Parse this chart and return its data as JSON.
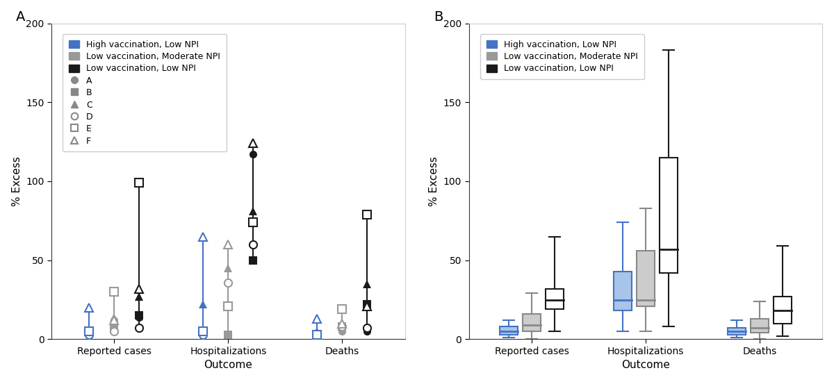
{
  "panel_A": {
    "label": "A",
    "scenarios": [
      {
        "name": "High vaccination, Low NPI",
        "color": "#4472C4",
        "models": {
          "Reported cases": {
            "A": 4,
            "B": 5,
            "C": 5,
            "D": 3,
            "E": 5,
            "F": 20
          },
          "Hospitalizations": {
            "A": 5,
            "B": 5,
            "C": 22,
            "D": 3,
            "E": 5,
            "F": 65
          },
          "Deaths": {
            "A": 2,
            "B": 2,
            "C": 5,
            "D": 0,
            "E": 3,
            "F": 13
          }
        }
      },
      {
        "name": "Low vaccination, Moderate NPI",
        "color": "#999999",
        "models": {
          "Reported cases": {
            "A": 12,
            "B": 7,
            "C": 14,
            "D": 5,
            "E": 30,
            "F": 12
          },
          "Hospitalizations": {
            "A": 3,
            "B": 3,
            "C": 45,
            "D": 36,
            "E": 21,
            "F": 60
          },
          "Deaths": {
            "A": 5,
            "B": 8,
            "C": 10,
            "D": 8,
            "E": 19,
            "F": 10
          }
        }
      },
      {
        "name": "Low vaccination, Low NPI",
        "color": "#1a1a1a",
        "models": {
          "Reported cases": {
            "A": 14,
            "B": 15,
            "C": 27,
            "D": 7,
            "E": 99,
            "F": 32
          },
          "Hospitalizations": {
            "A": 117,
            "B": 50,
            "C": 81,
            "D": 60,
            "E": 74,
            "F": 124
          },
          "Deaths": {
            "A": 5,
            "B": 22,
            "C": 35,
            "D": 7,
            "E": 79,
            "F": 21
          }
        }
      }
    ],
    "outcomes": [
      "Reported cases",
      "Hospitalizations",
      "Deaths"
    ],
    "model_markers": {
      "A": "o",
      "B": "s",
      "C": "^",
      "D": "o",
      "E": "s",
      "F": "^"
    },
    "model_filled": {
      "A": true,
      "B": true,
      "C": true,
      "D": false,
      "E": false,
      "F": false
    }
  },
  "panel_B": {
    "label": "B",
    "scenarios": [
      {
        "name": "High vaccination, Low NPI",
        "color": "#4472C4",
        "face_color": "#a8c4e8",
        "box_data": {
          "Reported cases": {
            "whislo": 1,
            "q1": 3,
            "med": 5,
            "q3": 8,
            "whishi": 12
          },
          "Hospitalizations": {
            "whislo": 5,
            "q1": 18,
            "med": 25,
            "q3": 43,
            "whishi": 74
          },
          "Deaths": {
            "whislo": 1,
            "q1": 3,
            "med": 5,
            "q3": 7,
            "whishi": 12
          }
        }
      },
      {
        "name": "Low vaccination, Moderate NPI",
        "color": "#888888",
        "face_color": "#cccccc",
        "box_data": {
          "Reported cases": {
            "whislo": 0,
            "q1": 5,
            "med": 9,
            "q3": 16,
            "whishi": 29
          },
          "Hospitalizations": {
            "whislo": 5,
            "q1": 21,
            "med": 25,
            "q3": 56,
            "whishi": 83
          },
          "Deaths": {
            "whislo": 0,
            "q1": 4,
            "med": 7,
            "q3": 13,
            "whishi": 24
          }
        }
      },
      {
        "name": "Low vaccination, Low NPI",
        "color": "#1a1a1a",
        "face_color": "#ffffff",
        "box_data": {
          "Reported cases": {
            "whislo": 5,
            "q1": 19,
            "med": 25,
            "q3": 32,
            "whishi": 65
          },
          "Hospitalizations": {
            "whislo": 8,
            "q1": 42,
            "med": 57,
            "q3": 115,
            "whishi": 183
          },
          "Deaths": {
            "whislo": 2,
            "q1": 10,
            "med": 18,
            "q3": 27,
            "whishi": 59
          }
        }
      }
    ],
    "outcomes": [
      "Reported cases",
      "Hospitalizations",
      "Deaths"
    ]
  },
  "ylim": [
    0,
    200
  ],
  "yticks": [
    0,
    50,
    100,
    150,
    200
  ],
  "xlabel": "Outcome",
  "ylabel": "% Excess",
  "background_color": "#ffffff",
  "axis_fontsize": 11,
  "tick_fontsize": 10,
  "legend_labels_top": [
    "High vaccination, Low NPI",
    "Low vaccination, Moderate NPI",
    "Low vaccination, Low NPI"
  ],
  "legend_colors_top": [
    "#4472C4",
    "#999999",
    "#1a1a1a"
  ],
  "legend_labels_bottom": [
    "A",
    "B",
    "C",
    "D",
    "E",
    "F"
  ],
  "scenario_offsets_A": [
    -0.22,
    0.0,
    0.22
  ],
  "scenario_offsets_B": [
    -0.2,
    0.0,
    0.2
  ],
  "box_width": 0.16,
  "markersize": 8
}
